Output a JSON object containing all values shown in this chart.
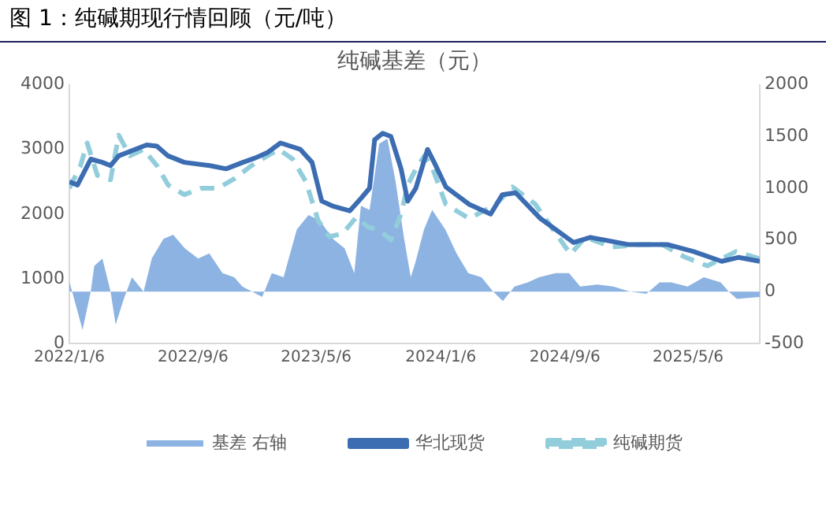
{
  "chart_data": {
    "type": "line",
    "title": "图 1：纯碱期现行情回顾（元/吨）",
    "subtitle": "纯碱基差（元）",
    "xlim": [
      "2022-01-06",
      "2025-09-24"
    ],
    "xticks": [
      {
        "value": "2022-01-06",
        "label": "2022/1/6"
      },
      {
        "value": "2022-09-06",
        "label": "2022/9/6"
      },
      {
        "value": "2023-05-06",
        "label": "2023/5/6"
      },
      {
        "value": "2024-01-06",
        "label": "2024/1/6"
      },
      {
        "value": "2024-09-06",
        "label": "2024/9/6"
      },
      {
        "value": "2025-05-06",
        "label": "2025/5/6"
      }
    ],
    "ylim": [
      0,
      4000
    ],
    "yticks": [
      0,
      1000,
      2000,
      3000,
      4000
    ],
    "y2lim": [
      -500,
      2000
    ],
    "y2ticks": [
      -500,
      0,
      500,
      1000,
      1500,
      2000
    ],
    "grid": false,
    "legend": "bottom",
    "series": [
      {
        "name": "基差 右轴",
        "type": "area",
        "axis": "y2",
        "color": "#8db3e2",
        "x": [
          "2022-01-06",
          "2022-02-01",
          "2022-02-17",
          "2022-02-24",
          "2022-03-12",
          "2022-03-28",
          "2022-04-07",
          "2022-04-23",
          "2022-05-09",
          "2022-06-01",
          "2022-06-17",
          "2022-07-10",
          "2022-07-29",
          "2022-08-21",
          "2022-09-16",
          "2022-10-08",
          "2022-11-03",
          "2022-11-26",
          "2022-12-12",
          "2023-01-20",
          "2023-02-08",
          "2023-03-03",
          "2023-03-29",
          "2023-04-21",
          "2023-05-13",
          "2023-06-08",
          "2023-07-01",
          "2023-07-20",
          "2023-08-02",
          "2023-08-19",
          "2023-09-07",
          "2023-09-23",
          "2023-10-09",
          "2023-10-26",
          "2023-11-08",
          "2023-11-17",
          "2023-12-04",
          "2023-12-20",
          "2024-01-15",
          "2024-02-06",
          "2024-02-29",
          "2024-03-26",
          "2024-04-18",
          "2024-05-07",
          "2024-05-30",
          "2024-06-25",
          "2024-07-17",
          "2024-08-19",
          "2024-09-14",
          "2024-10-06",
          "2024-11-08",
          "2024-12-10",
          "2025-01-12",
          "2025-02-13",
          "2025-03-11",
          "2025-04-03",
          "2025-05-05",
          "2025-06-06",
          "2025-07-09",
          "2025-07-25",
          "2025-08-10",
          "2025-09-24"
        ],
        "values": [
          100,
          -370,
          0,
          250,
          320,
          0,
          -320,
          -70,
          140,
          0,
          320,
          510,
          550,
          420,
          320,
          370,
          180,
          140,
          50,
          -50,
          180,
          140,
          600,
          740,
          690,
          510,
          420,
          180,
          830,
          790,
          1430,
          1480,
          1070,
          510,
          140,
          280,
          600,
          790,
          600,
          370,
          180,
          140,
          0,
          -90,
          50,
          90,
          140,
          180,
          180,
          50,
          70,
          50,
          0,
          -20,
          90,
          90,
          50,
          140,
          90,
          0,
          -70,
          -50
        ]
      },
      {
        "name": "华北现货",
        "type": "line",
        "color": "#3c6db2",
        "line_style": "solid",
        "x": [
          "2022-01-06",
          "2022-01-22",
          "2022-02-17",
          "2022-03-12",
          "2022-03-28",
          "2022-04-13",
          "2022-05-15",
          "2022-06-07",
          "2022-06-27",
          "2022-07-19",
          "2022-08-20",
          "2022-10-09",
          "2022-11-10",
          "2022-12-13",
          "2023-01-07",
          "2023-01-30",
          "2023-02-25",
          "2023-04-05",
          "2023-04-28",
          "2023-05-17",
          "2023-06-09",
          "2023-07-11",
          "2023-08-03",
          "2023-08-19",
          "2023-08-29",
          "2023-09-14",
          "2023-09-30",
          "2023-10-20",
          "2023-11-02",
          "2023-11-18",
          "2023-12-11",
          "2023-12-24",
          "2024-01-16",
          "2024-03-02",
          "2024-04-13",
          "2024-05-06",
          "2024-06-01",
          "2024-07-20",
          "2024-09-23",
          "2024-10-26",
          "2025-01-08",
          "2025-03-26",
          "2025-05-17",
          "2025-07-11",
          "2025-08-13",
          "2025-09-24"
        ],
        "values": [
          2500,
          2450,
          2850,
          2800,
          2750,
          2900,
          3000,
          3070,
          3050,
          2900,
          2800,
          2750,
          2700,
          2800,
          2870,
          2950,
          3100,
          3000,
          2800,
          2200,
          2120,
          2050,
          2250,
          2400,
          3150,
          3250,
          3200,
          2700,
          2200,
          2400,
          3000,
          2800,
          2420,
          2150,
          2000,
          2300,
          2330,
          1930,
          1560,
          1640,
          1530,
          1530,
          1420,
          1270,
          1330,
          1270
        ]
      },
      {
        "name": "纯碱期货",
        "type": "line",
        "color": "#92cddc",
        "line_style": "dashed",
        "x": [
          "2022-01-06",
          "2022-01-28",
          "2022-02-10",
          "2022-03-02",
          "2022-03-28",
          "2022-04-13",
          "2022-05-05",
          "2022-06-01",
          "2022-06-27",
          "2022-07-19",
          "2022-08-20",
          "2022-09-22",
          "2022-10-25",
          "2022-11-27",
          "2022-12-30",
          "2023-01-30",
          "2023-02-22",
          "2023-03-21",
          "2023-04-16",
          "2023-05-10",
          "2023-06-01",
          "2023-06-27",
          "2023-07-24",
          "2023-08-16",
          "2023-09-08",
          "2023-09-30",
          "2023-10-20",
          "2023-11-02",
          "2023-11-18",
          "2023-12-05",
          "2023-12-21",
          "2024-01-16",
          "2024-03-02",
          "2024-04-23",
          "2024-05-26",
          "2024-07-10",
          "2024-08-12",
          "2024-09-17",
          "2024-10-16",
          "2024-12-08",
          "2025-02-02",
          "2025-03-16",
          "2025-05-01",
          "2025-06-13",
          "2025-08-08",
          "2025-09-24"
        ],
        "values": [
          2400,
          2750,
          3100,
          2600,
          2530,
          3220,
          2900,
          3000,
          2750,
          2450,
          2300,
          2400,
          2400,
          2550,
          2750,
          2900,
          3000,
          2850,
          2500,
          1900,
          1650,
          1700,
          1950,
          1800,
          1750,
          1600,
          2000,
          2450,
          2700,
          2900,
          2700,
          2150,
          1930,
          2150,
          2420,
          2150,
          1780,
          1380,
          1640,
          1490,
          1530,
          1530,
          1330,
          1200,
          1420,
          1310
        ]
      }
    ]
  }
}
